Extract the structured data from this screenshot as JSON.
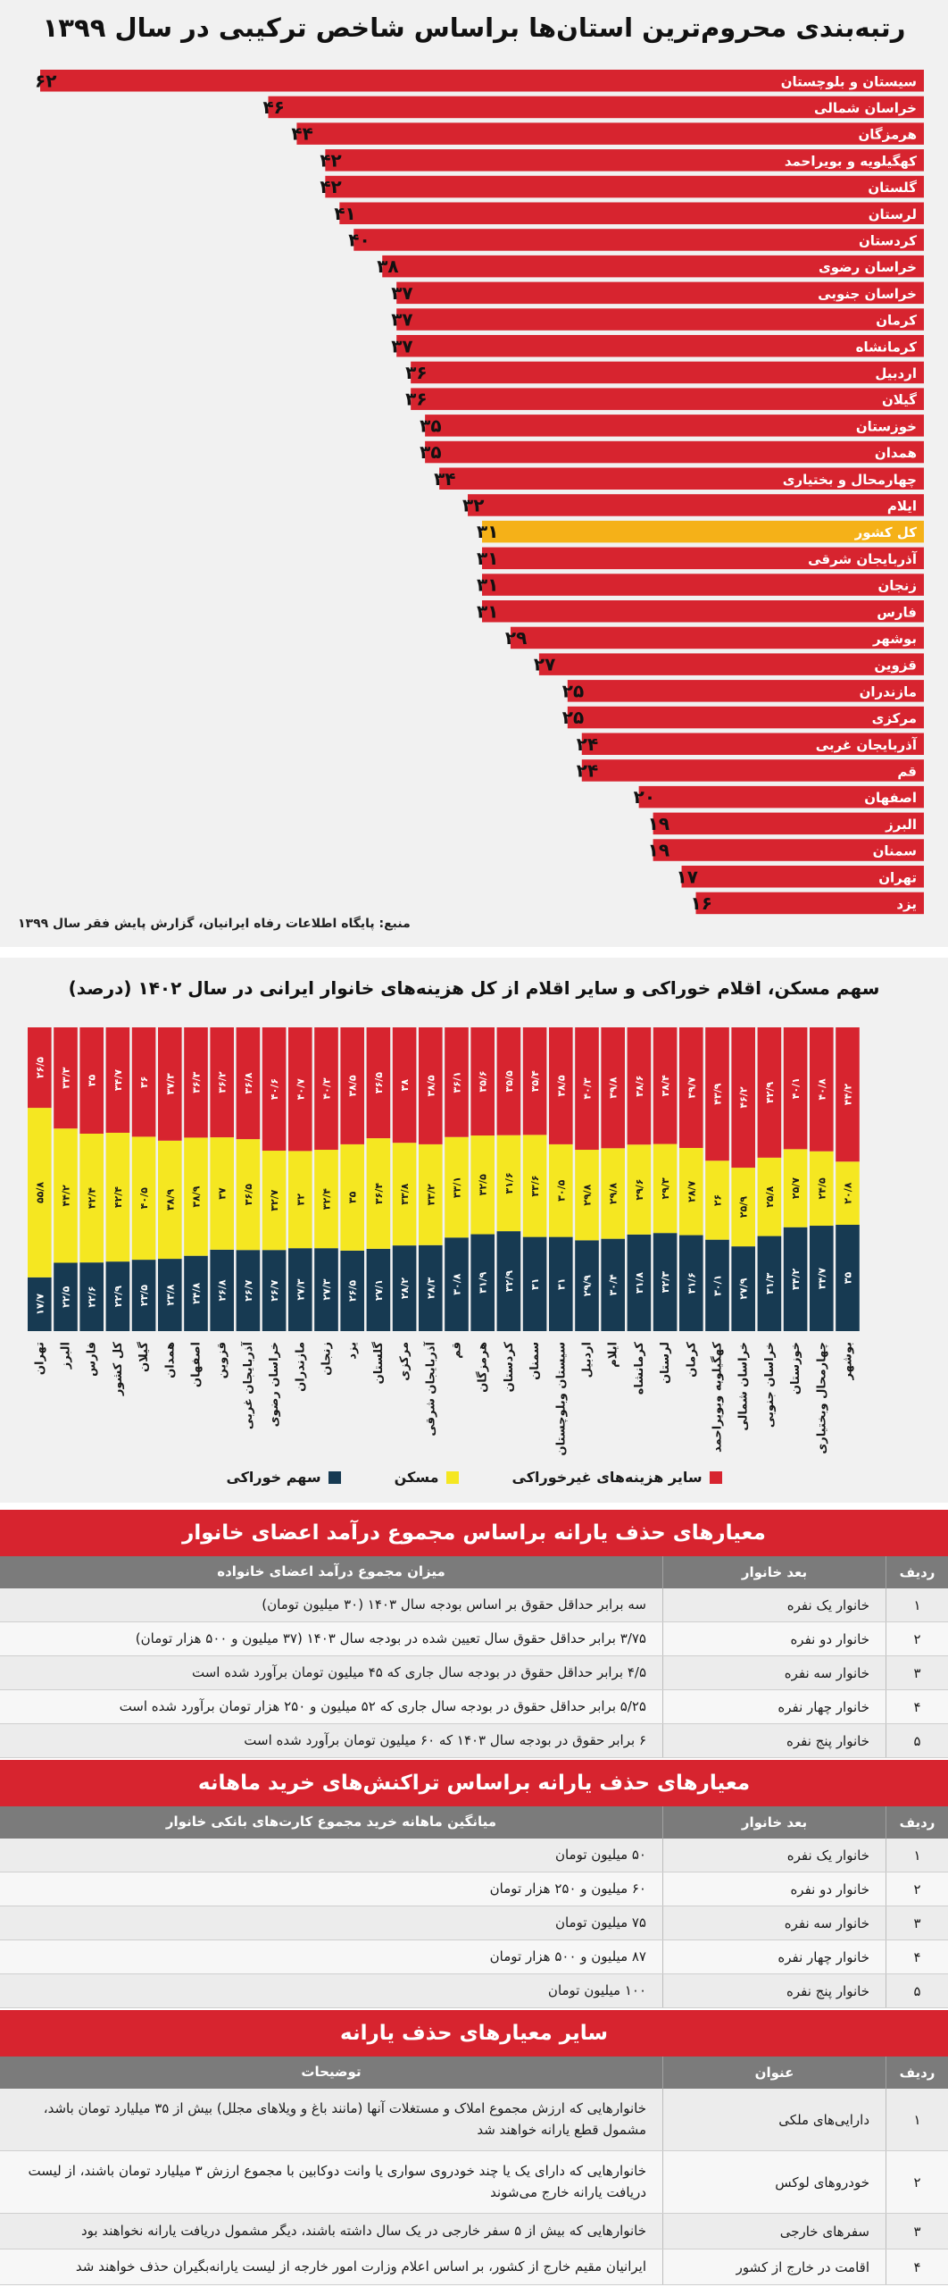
{
  "section1": {
    "title": "رتبه‌بندی محروم‌ترین استان‌ها براساس شاخص ترکیبی در سال ۱۳۹۹",
    "source": "منبع: پایگاه اطلاعات رفاه ایرانیان، گزارش پایش فقر سال ۱۳۹۹",
    "colors": {
      "bar": "#d7242f",
      "highlight": "#f5b118"
    }
  },
  "chart_data": [
    {
      "type": "bar",
      "orientation": "horizontal",
      "title": "رتبه‌بندی محروم‌ترین استان‌ها براساس شاخص ترکیبی در سال ۱۳۹۹",
      "categories": [
        "سیستان و بلوچستان",
        "خراسان شمالی",
        "هرمزگان",
        "کهگیلویه و بویراحمد",
        "گلستان",
        "لرستان",
        "کردستان",
        "خراسان رضوی",
        "خراسان جنوبی",
        "کرمان",
        "کرمانشاه",
        "اردبیل",
        "گیلان",
        "خوزستان",
        "همدان",
        "چهارمحال و بختیاری",
        "ایلام",
        "کل کشور",
        "آذربایجان شرقی",
        "زنجان",
        "فارس",
        "بوشهر",
        "قزوین",
        "مازندران",
        "مرکزی",
        "آذربایجان غربی",
        "قم",
        "اصفهان",
        "البرز",
        "سمنان",
        "تهران",
        "یزد"
      ],
      "values": [
        62,
        46,
        44,
        42,
        42,
        41,
        40,
        38,
        37,
        37,
        37,
        36,
        36,
        35,
        35,
        34,
        32,
        31,
        31,
        31,
        31,
        29,
        27,
        25,
        25,
        24,
        24,
        20,
        19,
        19,
        17,
        16
      ],
      "value_labels": [
        "۶۲",
        "۴۶",
        "۴۴",
        "۴۲",
        "۴۲",
        "۴۱",
        "۴۰",
        "۳۸",
        "۳۷",
        "۳۷",
        "۳۷",
        "۳۶",
        "۳۶",
        "۳۵",
        "۳۵",
        "۳۴",
        "۳۲",
        "۳۱",
        "۳۱",
        "۳۱",
        "۳۱",
        "۲۹",
        "۲۷",
        "۲۵",
        "۲۵",
        "۲۴",
        "۲۴",
        "۲۰",
        "۱۹",
        "۱۹",
        "۱۷",
        "۱۶"
      ],
      "highlight": "کل کشور",
      "xlim": [
        0,
        62
      ]
    },
    {
      "type": "bar",
      "stacked": true,
      "title": "سهم مسکن، اقلام خوراکی و سایر اقلام از کل هزینه‌های خانوار ایرانی در سال ۱۴۰۲ (درصد)",
      "categories": [
        "تهران",
        "البرز",
        "فارس",
        "کل کشور",
        "گیلان",
        "همدان",
        "اصفهان",
        "قزوین",
        "آذربایجان غربی",
        "خراسان رضوی",
        "مازندران",
        "زنجان",
        "یزد",
        "گلستان",
        "مرکزی",
        "آذربایجان شرقی",
        "قم",
        "هرمزگان",
        "کردستان",
        "سمنان",
        "سیستان وبلوچستان",
        "اردبیل",
        "ایلام",
        "کرمانشاه",
        "لرستان",
        "کرمان",
        "کهگیلویه وبویراحمد",
        "خراسان شمالی",
        "خراسان جنوبی",
        "خوزستان",
        "چهارمحال وبختیاری",
        "بوشهر"
      ],
      "series": [
        {
          "name": "سهم خوراکی",
          "color": "#173a52",
          "values": [
            17.7,
            22.5,
            22.6,
            22.9,
            23.5,
            23.8,
            24.8,
            26.8,
            26.7,
            26.7,
            27.3,
            27.3,
            26.5,
            27.1,
            28.2,
            28.3,
            30.8,
            31.9,
            32.9,
            31.0,
            31.0,
            29.9,
            30.4,
            31.8,
            32.3,
            31.6,
            30.1,
            27.9,
            31.3,
            34.2,
            34.7,
            35.0
          ],
          "labels": [
            "۱۷/۷",
            "۲۲/۵",
            "۲۲/۶",
            "۲۲/۹",
            "۲۳/۵",
            "۲۳/۸",
            "۲۴/۸",
            "۲۶/۸",
            "۲۶/۷",
            "۲۶/۷",
            "۲۷/۳",
            "۲۷/۳",
            "۲۶/۵",
            "۲۷/۱",
            "۲۸/۲",
            "۲۸/۳",
            "۳۰/۸",
            "۳۱/۹",
            "۳۲/۹",
            "۳۱",
            "۳۱",
            "۲۹/۹",
            "۳۰/۴",
            "۳۱/۸",
            "۳۲/۳",
            "۳۱/۶",
            "۳۰/۱",
            "۲۷/۹",
            "۳۱/۳",
            "۳۴/۲",
            "۳۴/۷",
            "۳۵"
          ]
        },
        {
          "name": "مسکن",
          "color": "#f5e721",
          "values": [
            55.8,
            44.2,
            42.4,
            42.4,
            40.5,
            38.9,
            38.9,
            37.0,
            36.5,
            32.7,
            32.0,
            32.4,
            35.0,
            36.4,
            33.8,
            33.2,
            33.1,
            32.5,
            31.6,
            33.6,
            30.5,
            29.8,
            29.8,
            29.6,
            29.3,
            28.7,
            26.0,
            25.9,
            25.8,
            25.7,
            24.5,
            20.8
          ],
          "labels": [
            "۵۵/۸",
            "۴۴/۲",
            "۴۲/۴",
            "۴۲/۴",
            "۴۰/۵",
            "۳۸/۹",
            "۳۸/۹",
            "۳۷",
            "۳۶/۵",
            "۳۲/۷",
            "۳۲",
            "۳۲/۴",
            "۳۵",
            "۳۶/۴",
            "۳۳/۸",
            "۳۳/۲",
            "۳۳/۱",
            "۳۲/۵",
            "۳۱/۶",
            "۳۳/۶",
            "۳۰/۵",
            "۲۹/۸",
            "۲۹/۸",
            "۲۹/۶",
            "۲۹/۳",
            "۲۸/۷",
            "۲۶",
            "۲۵/۹",
            "۲۵/۸",
            "۲۵/۷",
            "۲۴/۵",
            "۲۰/۸"
          ]
        },
        {
          "name": "سایر هزینه‌های غیرخوراکی",
          "color": "#d7242f",
          "values": [
            26.5,
            33.3,
            35.0,
            34.7,
            36.0,
            37.3,
            36.3,
            36.2,
            36.8,
            40.6,
            40.7,
            40.3,
            38.5,
            36.5,
            38.0,
            38.5,
            36.1,
            35.6,
            35.5,
            35.4,
            38.5,
            40.3,
            39.8,
            38.6,
            38.4,
            39.7,
            43.9,
            46.2,
            42.9,
            40.1,
            40.8,
            44.2
          ],
          "labels": [
            "۲۶/۵",
            "۳۳/۳",
            "۳۵",
            "۳۴/۷",
            "۳۶",
            "۳۷/۳",
            "۳۶/۳",
            "۳۶/۲",
            "۳۶/۸",
            "۴۰/۶",
            "۴۰/۷",
            "۴۰/۳",
            "۳۸/۵",
            "۳۶/۵",
            "۳۸",
            "۳۸/۵",
            "۳۶/۱",
            "۳۵/۶",
            "۳۵/۵",
            "۳۵/۴",
            "۳۸/۵",
            "۴۰/۳",
            "۳۹/۸",
            "۳۸/۶",
            "۳۸/۴",
            "۳۹/۷",
            "۴۳/۹",
            "۴۶/۲",
            "۴۲/۹",
            "۴۰/۱",
            "۴۰/۸",
            "۴۴/۲"
          ]
        }
      ],
      "ylim": [
        0,
        100
      ],
      "legend": "bottom"
    }
  ],
  "section2": {
    "title": "سهم مسکن، اقلام خوراکی و سایر اقلام از کل هزینه‌های خانوار ایرانی در سال ۱۴۰۲ (درصد)",
    "legend": {
      "food": "سهم خوراکی",
      "housing": "مسکن",
      "other": "سایر هزینه‌های غیرخوراکی"
    }
  },
  "table1": {
    "title": "معیارهای حذف یارانه براساس مجموع درآمد اعضای خانوار",
    "headers": {
      "idx": "ردیف",
      "cat": "بعد خانوار",
      "txt": "میزان مجموع درآمد اعضای خانواده"
    },
    "rows": [
      {
        "idx": "۱",
        "cat": "خانوار یک نفره",
        "txt": "سه برابر حداقل حقوق بر اساس بودجه سال ۱۴۰۳ (۳۰ میلیون تومان)"
      },
      {
        "idx": "۲",
        "cat": "خانوار دو نفره",
        "txt": "۳/۷۵ برابر حداقل حقوق سال تعیین شده در بودجه سال ۱۴۰۳ (۳۷ میلیون و ۵۰۰ هزار تومان)"
      },
      {
        "idx": "۳",
        "cat": "خانوار سه نفره",
        "txt": "۴/۵ برابر حداقل حقوق در بودجه سال جاری که ۴۵ میلیون تومان برآورد شده است"
      },
      {
        "idx": "۴",
        "cat": "خانوار چهار نفره",
        "txt": "۵/۲۵ برابر حداقل حقوق در بودجه سال جاری که ۵۲ میلیون و ۲۵۰ هزار تومان برآورد شده است"
      },
      {
        "idx": "۵",
        "cat": "خانوار پنج نفره",
        "txt": "۶ برابر حقوق در بودجه سال ۱۴۰۳ که ۶۰ میلیون تومان برآورد شده است"
      }
    ]
  },
  "table2": {
    "title": "معیارهای حذف یارانه براساس تراکنش‌های خرید ماهانه",
    "headers": {
      "idx": "ردیف",
      "cat": "بعد خانوار",
      "txt": "میانگین ماهانه خرید مجموع کارت‌های بانکی خانوار"
    },
    "rows": [
      {
        "idx": "۱",
        "cat": "خانوار یک نفره",
        "txt": "۵۰ میلیون تومان"
      },
      {
        "idx": "۲",
        "cat": "خانوار دو نفره",
        "txt": "۶۰ میلیون و ۲۵۰ هزار تومان"
      },
      {
        "idx": "۳",
        "cat": "خانوار سه نفره",
        "txt": "۷۵ میلیون تومان"
      },
      {
        "idx": "۴",
        "cat": "خانوار چهار نفره",
        "txt": "۸۷ میلیون و ۵۰۰ هزار تومان"
      },
      {
        "idx": "۵",
        "cat": "خانوار پنج نفره",
        "txt": "۱۰۰ میلیون تومان"
      }
    ]
  },
  "table3": {
    "title": "سایر معیارهای حذف یارانه",
    "headers": {
      "idx": "ردیف",
      "cat": "عنوان",
      "txt": "توضیحات"
    },
    "rows": [
      {
        "idx": "۱",
        "cat": "دارایی‌های ملکی",
        "txt": "خانوارهایی که ارزش مجموع املاک و مستغلات آنها (مانند باغ و ویلاهای مجلل) بیش از ۳۵ میلیارد تومان باشد، مشمول قطع یارانه خواهند شد"
      },
      {
        "idx": "۲",
        "cat": "خودروهای لوکس",
        "txt": "خانوارهایی که دارای یک یا چند خودروی سواری یا وانت دوکابین با مجموع ارزش ۳ میلیارد تومان باشند، از لیست دریافت یارانه خارج می‌شوند"
      },
      {
        "idx": "۳",
        "cat": "سفرهای خارجی",
        "txt": "خانوارهایی که بیش از ۵ سفر خارجی در یک سال داشته باشند، دیگر مشمول دریافت یارانه نخواهند بود"
      },
      {
        "idx": "۴",
        "cat": "اقامت در خارج از کشور",
        "txt": "ایرانیان مقیم خارج از کشور، بر اساس اعلام وزارت امور خارجه از لیست یارانه‌بگیران حذف خواهند شد"
      }
    ]
  }
}
